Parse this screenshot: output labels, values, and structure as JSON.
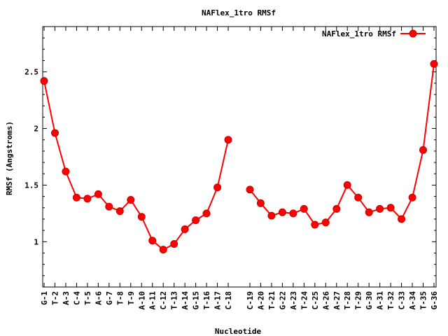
{
  "chart_data": {
    "type": "line",
    "title": "NAFlex_1tro RMSf",
    "xlabel": "Nucleotide",
    "ylabel": "RMSf (Angstroms)",
    "ylim": [
      0.6,
      2.9
    ],
    "yticks": [
      1,
      1.5,
      2,
      2.5
    ],
    "ytick_labels": [
      "1",
      "1.5",
      "2",
      "2.5"
    ],
    "legend": {
      "position": "top-right"
    },
    "grid": false,
    "series": [
      {
        "name": "NAFlex_1tro RMSf",
        "color": "#ff0000",
        "segments": [
          {
            "categories": [
              "G-1",
              "T-2",
              "A-3",
              "C-4",
              "T-5",
              "A-6",
              "G-7",
              "T-8",
              "T-9",
              "A-10",
              "A-11",
              "C-12",
              "T-13",
              "A-14",
              "G-15",
              "T-16",
              "A-17",
              "C-18"
            ],
            "values": [
              2.42,
              1.96,
              1.62,
              1.39,
              1.38,
              1.42,
              1.31,
              1.27,
              1.37,
              1.22,
              1.01,
              0.93,
              0.98,
              1.11,
              1.19,
              1.25,
              1.48,
              1.9
            ]
          },
          {
            "categories": [
              "C-19",
              "A-20",
              "T-21",
              "G-22",
              "A-23",
              "T-24",
              "C-25",
              "A-26",
              "A-27",
              "T-28",
              "T-29",
              "G-30",
              "A-31",
              "T-32",
              "C-33",
              "A-34",
              "T-35",
              "G-36"
            ],
            "values": [
              1.46,
              1.34,
              1.23,
              1.26,
              1.25,
              1.29,
              1.15,
              1.17,
              1.29,
              1.5,
              1.39,
              1.26,
              1.29,
              1.3,
              1.2,
              1.39,
              1.81,
              2.57
            ]
          }
        ]
      }
    ]
  }
}
